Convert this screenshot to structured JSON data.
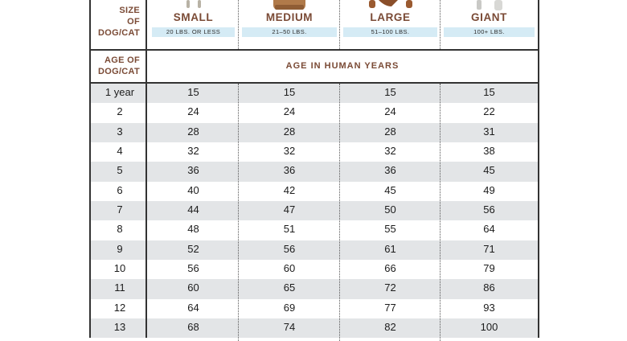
{
  "size_label": [
    "SIZE",
    "OF",
    "DOG/CAT"
  ],
  "age_label": [
    "AGE OF",
    "DOG/CAT"
  ],
  "human_title": "AGE IN HUMAN YEARS",
  "sizes": [
    {
      "name": "SMALL",
      "weight": "20 LBS. OR LESS",
      "icon": "small-pet-icon",
      "color": "#b8b2a5"
    },
    {
      "name": "MEDIUM",
      "weight": "21–50 LBS.",
      "icon": "medium-pet-icon",
      "color": "#b07a4a"
    },
    {
      "name": "LARGE",
      "weight": "51–100 LBS.",
      "icon": "large-pet-icon",
      "color": "#9a5a30"
    },
    {
      "name": "GIANT",
      "weight": "100+ LBS.",
      "icon": "giant-pet-icon",
      "color": "#c9c9c6"
    }
  ],
  "rows": [
    {
      "age": "1 year",
      "values": [
        "15",
        "15",
        "15",
        "15"
      ]
    },
    {
      "age": "2",
      "values": [
        "24",
        "24",
        "24",
        "22"
      ]
    },
    {
      "age": "3",
      "values": [
        "28",
        "28",
        "28",
        "31"
      ]
    },
    {
      "age": "4",
      "values": [
        "32",
        "32",
        "32",
        "38"
      ]
    },
    {
      "age": "5",
      "values": [
        "36",
        "36",
        "36",
        "45"
      ]
    },
    {
      "age": "6",
      "values": [
        "40",
        "42",
        "45",
        "49"
      ]
    },
    {
      "age": "7",
      "values": [
        "44",
        "47",
        "50",
        "56"
      ]
    },
    {
      "age": "8",
      "values": [
        "48",
        "51",
        "55",
        "64"
      ]
    },
    {
      "age": "9",
      "values": [
        "52",
        "56",
        "61",
        "71"
      ]
    },
    {
      "age": "10",
      "values": [
        "56",
        "60",
        "66",
        "79"
      ]
    },
    {
      "age": "11",
      "values": [
        "60",
        "65",
        "72",
        "86"
      ]
    },
    {
      "age": "12",
      "values": [
        "64",
        "69",
        "77",
        "93"
      ]
    },
    {
      "age": "13",
      "values": [
        "68",
        "74",
        "82",
        "100"
      ]
    }
  ]
}
